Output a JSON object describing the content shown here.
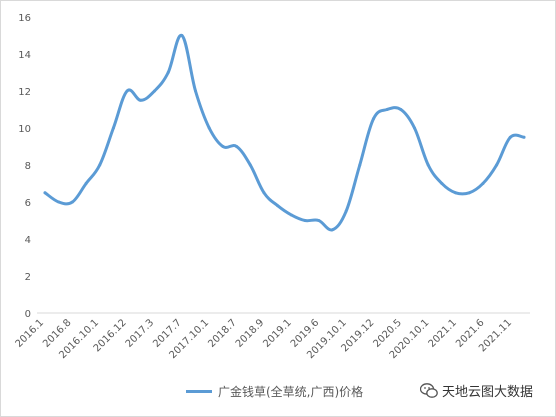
{
  "chart_data": {
    "type": "line",
    "title": "",
    "xlabel": "",
    "ylabel": "",
    "ylim": [
      0,
      16
    ],
    "yticks": [
      0,
      2,
      4,
      6,
      8,
      10,
      12,
      14,
      16
    ],
    "grid": false,
    "legend_position": "bottom",
    "line_color": "#5b9bd5",
    "x_tick_labels": [
      "2016.1",
      "2016.8",
      "2016.10.1",
      "2016.12",
      "2017.3",
      "2017.7",
      "2017.10.1",
      "2018.7",
      "2018.9",
      "2019.1",
      "2019.6",
      "2019.10.1",
      "2019.12",
      "2020.5",
      "2020.10.1",
      "2021.1",
      "2021.6",
      "2021.11"
    ],
    "series": [
      {
        "name": "广金钱草(全草统,广西)价格",
        "values": [
          6.5,
          6.0,
          6.0,
          7.0,
          8.0,
          10.0,
          12.0,
          11.5,
          12.0,
          13.0,
          15.0,
          12.0,
          10.0,
          9.0,
          9.0,
          8.0,
          6.5,
          5.8,
          5.3,
          5.0,
          5.0,
          4.5,
          5.5,
          8.0,
          10.5,
          11.0,
          11.0,
          10.0,
          8.0,
          7.0,
          6.5,
          6.5,
          7.0,
          8.0,
          9.5,
          9.5
        ]
      }
    ]
  },
  "watermark": {
    "text": "天地云图大数据",
    "icon": "wechat-icon"
  }
}
